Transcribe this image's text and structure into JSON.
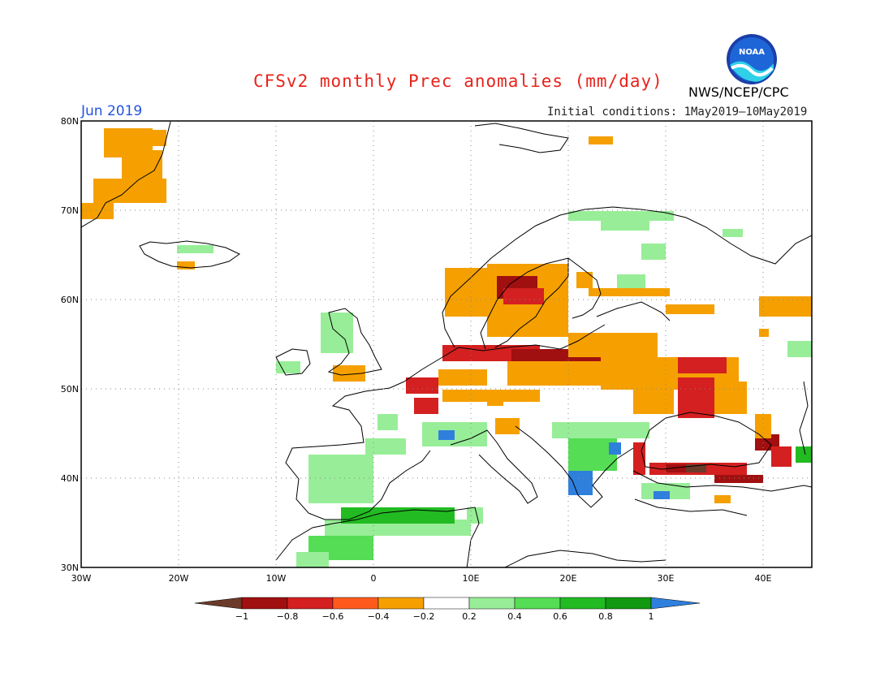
{
  "header": {
    "title": "CFSv2 monthly Prec anomalies (mm/day)",
    "month": "Jun 2019",
    "initial_conditions": "Initial conditions: 1May2019—10May2019",
    "agency": "NWS/NCEP/CPC",
    "logo_text": "NOAA"
  },
  "map": {
    "lon_labels": [
      "30W",
      "20W",
      "10W",
      "0",
      "10E",
      "20E",
      "30E",
      "40E"
    ],
    "lat_labels": [
      "80N",
      "70N",
      "60N",
      "50N",
      "40N",
      "30N"
    ],
    "lon_range": [
      -30,
      45
    ],
    "lat_range": [
      30,
      80
    ]
  },
  "colorbar": {
    "tick_labels": [
      "−1",
      "−0.8",
      "−0.6",
      "−0.4",
      "−0.2",
      "0.2",
      "0.4",
      "0.6",
      "0.8",
      "1"
    ],
    "colors": [
      "#6b3a2a",
      "#a01010",
      "#d42020",
      "#ff5a1e",
      "#f5a000",
      "#ffffff",
      "#98ee98",
      "#55dd55",
      "#22bb22",
      "#119911",
      "#2f7fdd"
    ]
  }
}
